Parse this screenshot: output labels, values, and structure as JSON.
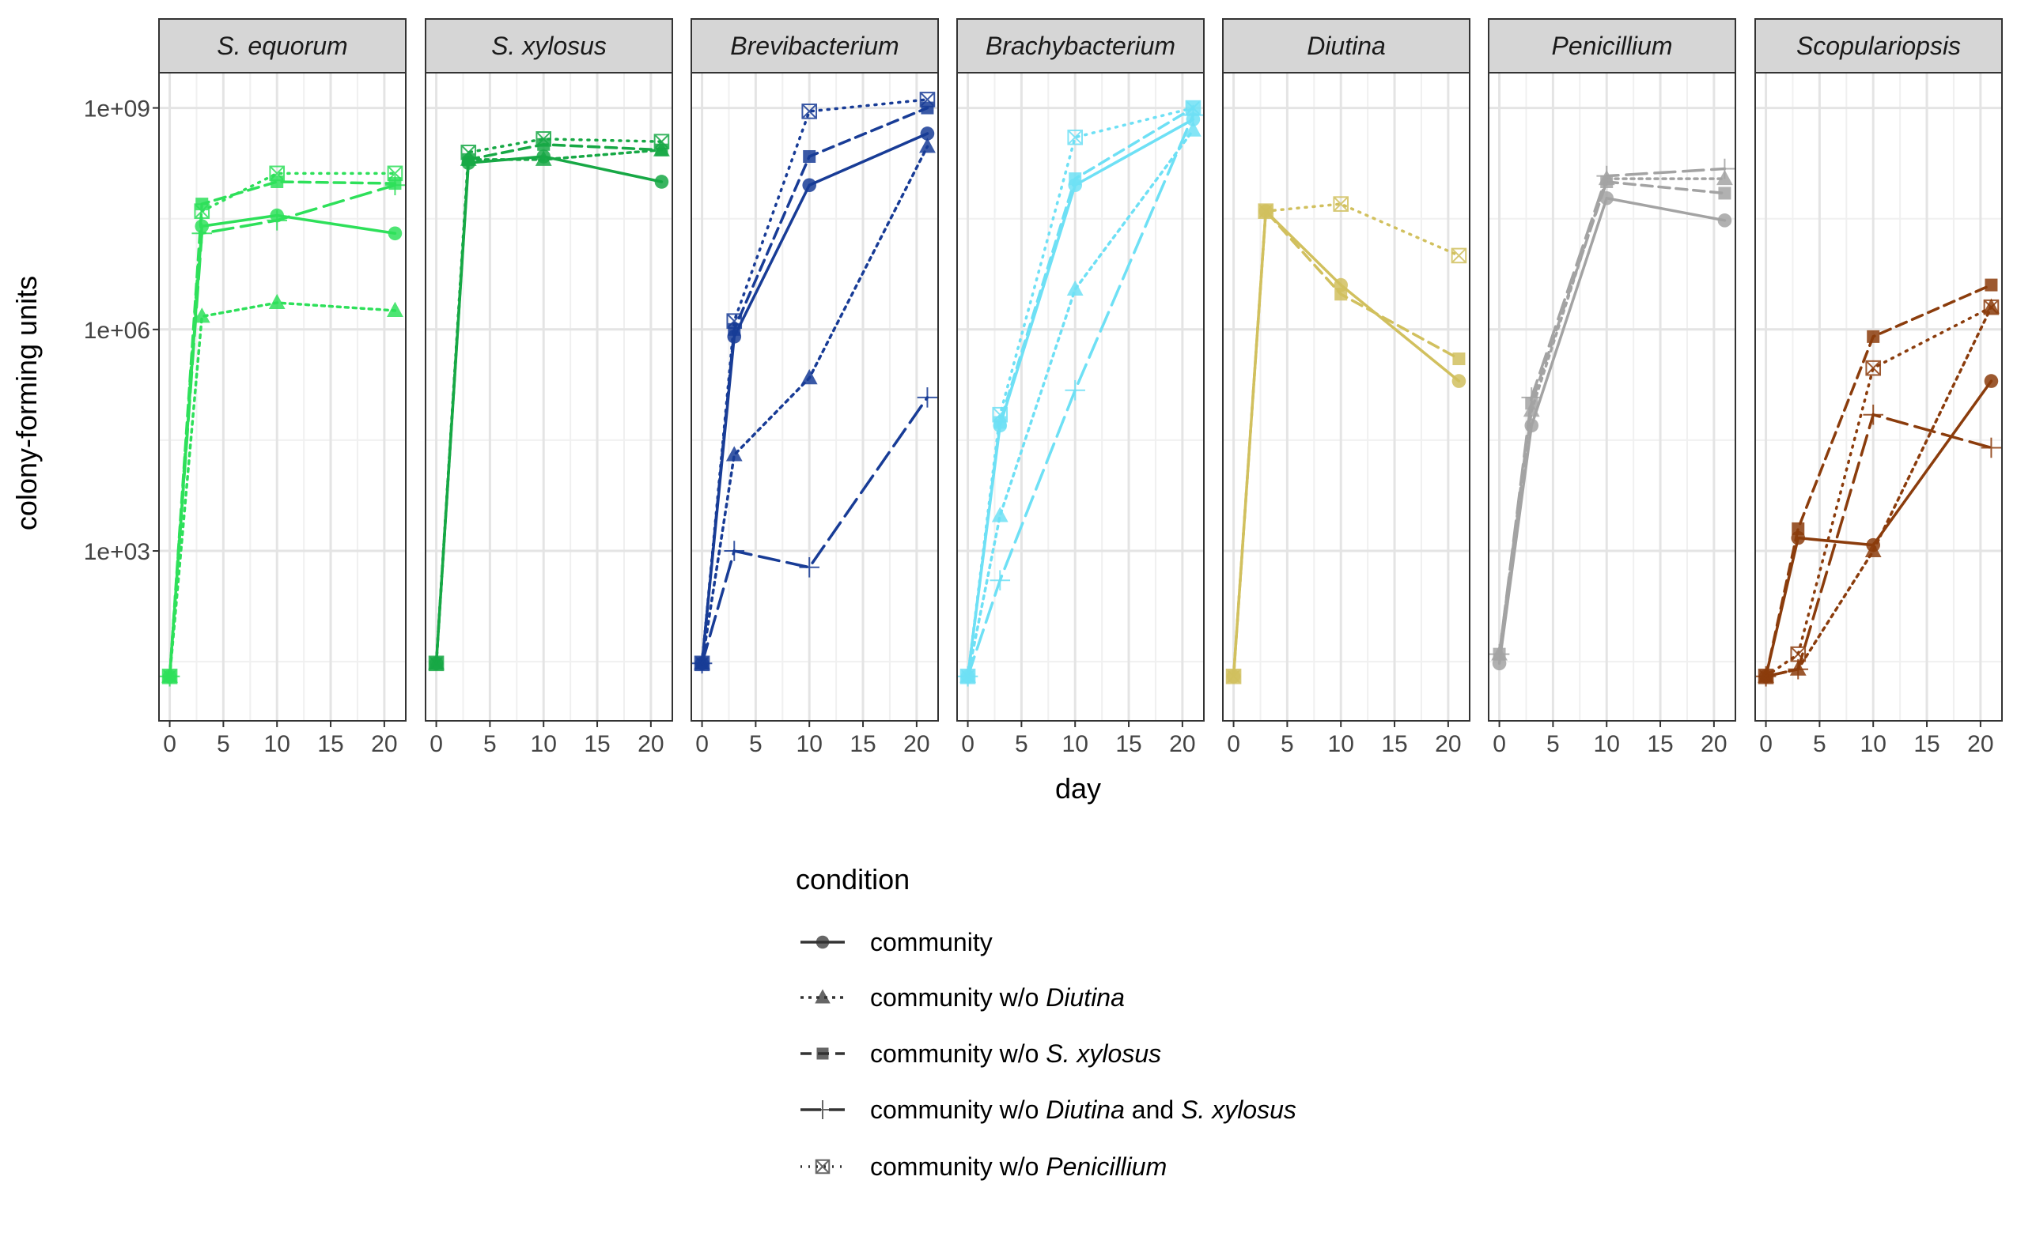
{
  "chart_data": {
    "type": "line",
    "ylabel": "colony-forming units",
    "xlabel": "day",
    "y_scale": "log10",
    "ylim": [
      5,
      3000000000
    ],
    "xlim": [
      -1,
      22
    ],
    "x_ticks": [
      0,
      5,
      10,
      15,
      20
    ],
    "y_ticks": [
      {
        "value": 1000,
        "label": "1e+03"
      },
      {
        "value": 1000000,
        "label": "1e+06"
      },
      {
        "value": 1000000000,
        "label": "1e+09"
      }
    ],
    "grid": true,
    "legend": {
      "title": "condition",
      "position": "bottom",
      "entries": [
        {
          "key": "community",
          "parts": [
            {
              "t": "community",
              "i": false
            }
          ],
          "dash": "",
          "marker": "circle"
        },
        {
          "key": "no_diutina",
          "parts": [
            {
              "t": "community w/o ",
              "i": false
            },
            {
              "t": "Diutina",
              "i": true
            }
          ],
          "dash": "4,6",
          "marker": "triangle"
        },
        {
          "key": "no_sxylosus",
          "parts": [
            {
              "t": "community w/o ",
              "i": false
            },
            {
              "t": "S. xylosus",
              "i": true
            }
          ],
          "dash": "14,8",
          "marker": "square"
        },
        {
          "key": "no_both",
          "parts": [
            {
              "t": "community w/o ",
              "i": false
            },
            {
              "t": "Diutina",
              "i": true
            },
            {
              "t": " and ",
              "i": false
            },
            {
              "t": "S. xylosus",
              "i": true
            }
          ],
          "dash": "26,10",
          "marker": "plus"
        },
        {
          "key": "no_penicillium",
          "parts": [
            {
              "t": "community w/o ",
              "i": false
            },
            {
              "t": "Penicillium",
              "i": true
            }
          ],
          "dash": "2,8",
          "marker": "boxx"
        }
      ]
    },
    "days": [
      0,
      3,
      10,
      21
    ],
    "panels": [
      {
        "title": "S. equorum",
        "color": "#2ee05a",
        "series": [
          {
            "condition": "community",
            "values": [
              20,
              25000000,
              35000000,
              20000000
            ]
          },
          {
            "condition": "no_diutina",
            "values": [
              20,
              1500000,
              2300000,
              1800000
            ]
          },
          {
            "condition": "no_sxylosus",
            "values": [
              20,
              50000000,
              100000000,
              95000000
            ]
          },
          {
            "condition": "no_both",
            "values": [
              20,
              20000000,
              30000000,
              90000000
            ]
          },
          {
            "condition": "no_penicillium",
            "values": [
              20,
              40000000,
              130000000,
              130000000
            ]
          }
        ]
      },
      {
        "title": "S. xylosus",
        "color": "#17a845",
        "series": [
          {
            "condition": "community",
            "values": [
              30,
              180000000,
              220000000,
              100000000
            ]
          },
          {
            "condition": "no_diutina",
            "values": [
              30,
              200000000,
              200000000,
              270000000
            ]
          },
          {
            "condition": "no_sxylosus",
            "values": [
              30,
              200000000,
              320000000,
              270000000
            ]
          },
          {
            "condition": "no_penicillium",
            "values": [
              30,
              250000000,
              380000000,
              350000000
            ]
          }
        ]
      },
      {
        "title": "Brevibacterium",
        "color": "#183c96",
        "series": [
          {
            "condition": "community",
            "values": [
              30,
              800000,
              90000000,
              450000000
            ]
          },
          {
            "condition": "no_diutina",
            "values": [
              30,
              20000,
              220000,
              300000000
            ]
          },
          {
            "condition": "no_sxylosus",
            "values": [
              30,
              1000000,
              220000000,
              1000000000
            ]
          },
          {
            "condition": "no_both",
            "values": [
              30,
              1000,
              600,
              120000
            ]
          },
          {
            "condition": "no_penicillium",
            "values": [
              30,
              1300000,
              900000000,
              1300000000
            ]
          }
        ]
      },
      {
        "title": "Brachybacterium",
        "color": "#6ee0f5",
        "series": [
          {
            "condition": "community",
            "values": [
              20,
              50000,
              90000000,
              700000000
            ]
          },
          {
            "condition": "no_diutina",
            "values": [
              20,
              3000,
              3500000,
              500000000
            ]
          },
          {
            "condition": "no_sxylosus",
            "values": [
              20,
              55000,
              110000000,
              1000000000
            ]
          },
          {
            "condition": "no_both",
            "values": [
              20,
              400,
              150000,
              800000000
            ]
          },
          {
            "condition": "no_penicillium",
            "values": [
              20,
              70000,
              400000000,
              1000000000
            ]
          }
        ]
      },
      {
        "title": "Diutina",
        "color": "#d1c05e",
        "series": [
          {
            "condition": "community",
            "values": [
              20,
              40000000,
              4000000,
              200000
            ]
          },
          {
            "condition": "no_sxylosus",
            "values": [
              20,
              40000000,
              3000000,
              400000
            ]
          },
          {
            "condition": "no_penicillium",
            "values": [
              20,
              40000000,
              50000000,
              10000000
            ]
          }
        ]
      },
      {
        "title": "Penicillium",
        "color": "#a3a3a3",
        "series": [
          {
            "condition": "community",
            "values": [
              30,
              50000,
              60000000,
              30000000
            ]
          },
          {
            "condition": "no_diutina",
            "values": [
              40,
              80000,
              110000000,
              110000000
            ]
          },
          {
            "condition": "no_sxylosus",
            "values": [
              40,
              100000,
              100000000,
              70000000
            ]
          },
          {
            "condition": "no_both",
            "values": [
              40,
              120000,
              120000000,
              150000000
            ]
          }
        ]
      },
      {
        "title": "Scopulariopsis",
        "color": "#8b3c0c",
        "series": [
          {
            "condition": "community",
            "values": [
              20,
              1500,
              1200,
              200000
            ]
          },
          {
            "condition": "no_diutina",
            "values": [
              20,
              25,
              1000,
              2000000
            ]
          },
          {
            "condition": "no_sxylosus",
            "values": [
              20,
              2000,
              800000,
              4000000
            ]
          },
          {
            "condition": "no_both",
            "values": [
              20,
              25,
              70000,
              25000
            ]
          },
          {
            "condition": "no_penicillium",
            "values": [
              20,
              40,
              300000,
              2000000
            ]
          }
        ]
      }
    ]
  }
}
